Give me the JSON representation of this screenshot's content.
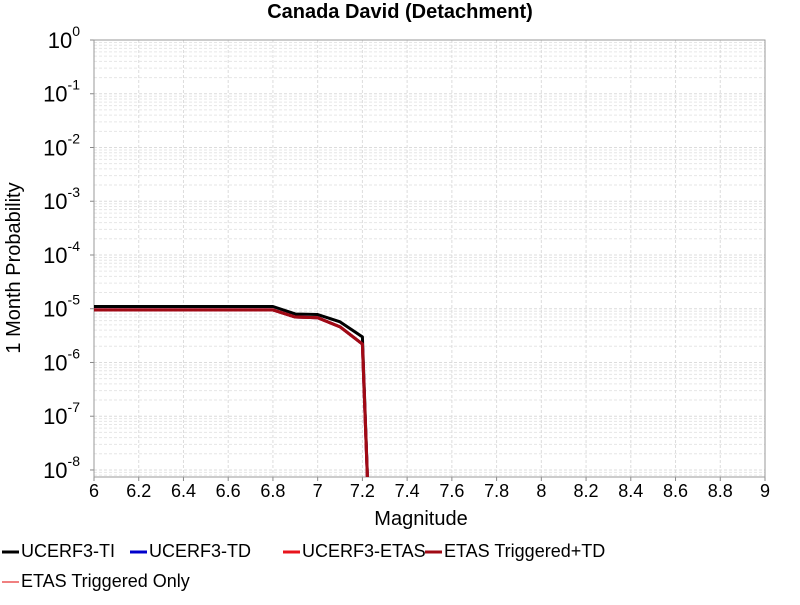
{
  "chart_data": {
    "type": "line",
    "title": "Canada David (Detachment)",
    "x_label": "Magnitude",
    "y_label": "1 Month Probability",
    "log_y": true,
    "grid": true,
    "legend": "bottom",
    "x": [
      6.0,
      6.1,
      6.2,
      6.3,
      6.4,
      6.5,
      6.6,
      6.7,
      6.8,
      6.9,
      7.0,
      7.1,
      7.2,
      7.23
    ],
    "series": [
      {
        "name": "UCERF3-TI",
        "color": "#000000",
        "values": [
          1.1e-05,
          1.1e-05,
          1.1e-05,
          1.1e-05,
          1.1e-05,
          1.1e-05,
          1.1e-05,
          1.1e-05,
          1.1e-05,
          8e-06,
          7.8e-06,
          5.7e-06,
          3e-06,
          1e-09
        ]
      },
      {
        "name": "UCERF3-TD",
        "color": "#0000cc",
        "values": [
          9.5e-06,
          9.5e-06,
          9.5e-06,
          9.5e-06,
          9.5e-06,
          9.5e-06,
          9.5e-06,
          9.5e-06,
          9.5e-06,
          7e-06,
          6.8e-06,
          4.6e-06,
          2.2e-06,
          1e-09
        ]
      },
      {
        "name": "UCERF3-ETAS",
        "color": "#e8141c",
        "values": [
          9.5e-06,
          9.5e-06,
          9.5e-06,
          9.5e-06,
          9.5e-06,
          9.5e-06,
          9.5e-06,
          9.5e-06,
          9.5e-06,
          7e-06,
          6.8e-06,
          4.6e-06,
          2.2e-06,
          1e-09
        ]
      },
      {
        "name": "ETAS Triggered+TD",
        "color": "#a00a14",
        "values": [
          9.5e-06,
          9.5e-06,
          9.5e-06,
          9.5e-06,
          9.5e-06,
          9.5e-06,
          9.5e-06,
          9.5e-06,
          9.5e-06,
          7e-06,
          6.8e-06,
          4.6e-06,
          2.2e-06,
          1e-09
        ]
      },
      {
        "name": "ETAS Triggered Only",
        "color": "#f08080",
        "values": [
          null,
          null,
          null,
          null,
          null,
          null,
          null,
          null,
          null,
          null,
          null,
          null,
          null,
          null
        ]
      }
    ],
    "xlim": [
      6,
      9
    ],
    "xticks": [
      6,
      6.2,
      6.4,
      6.6,
      6.8,
      7,
      7.2,
      7.4,
      7.6,
      7.8,
      8,
      8.2,
      8.4,
      8.6,
      8.8,
      9
    ],
    "ylim": [
      7.4e-09,
      1
    ],
    "yticks": [
      {
        "value": 1,
        "base": "10",
        "exponent": "0"
      },
      {
        "value": 0.1,
        "base": "10",
        "exponent": "-1"
      },
      {
        "value": 0.01,
        "base": "10",
        "exponent": "-2"
      },
      {
        "value": 0.001,
        "base": "10",
        "exponent": "-3"
      },
      {
        "value": 0.0001,
        "base": "10",
        "exponent": "-4"
      },
      {
        "value": 1e-05,
        "base": "10",
        "exponent": "-5"
      },
      {
        "value": 1e-06,
        "base": "10",
        "exponent": "-6"
      },
      {
        "value": 1e-07,
        "base": "10",
        "exponent": "-7"
      },
      {
        "value": 1e-08,
        "base": "10",
        "exponent": "-8"
      }
    ]
  }
}
